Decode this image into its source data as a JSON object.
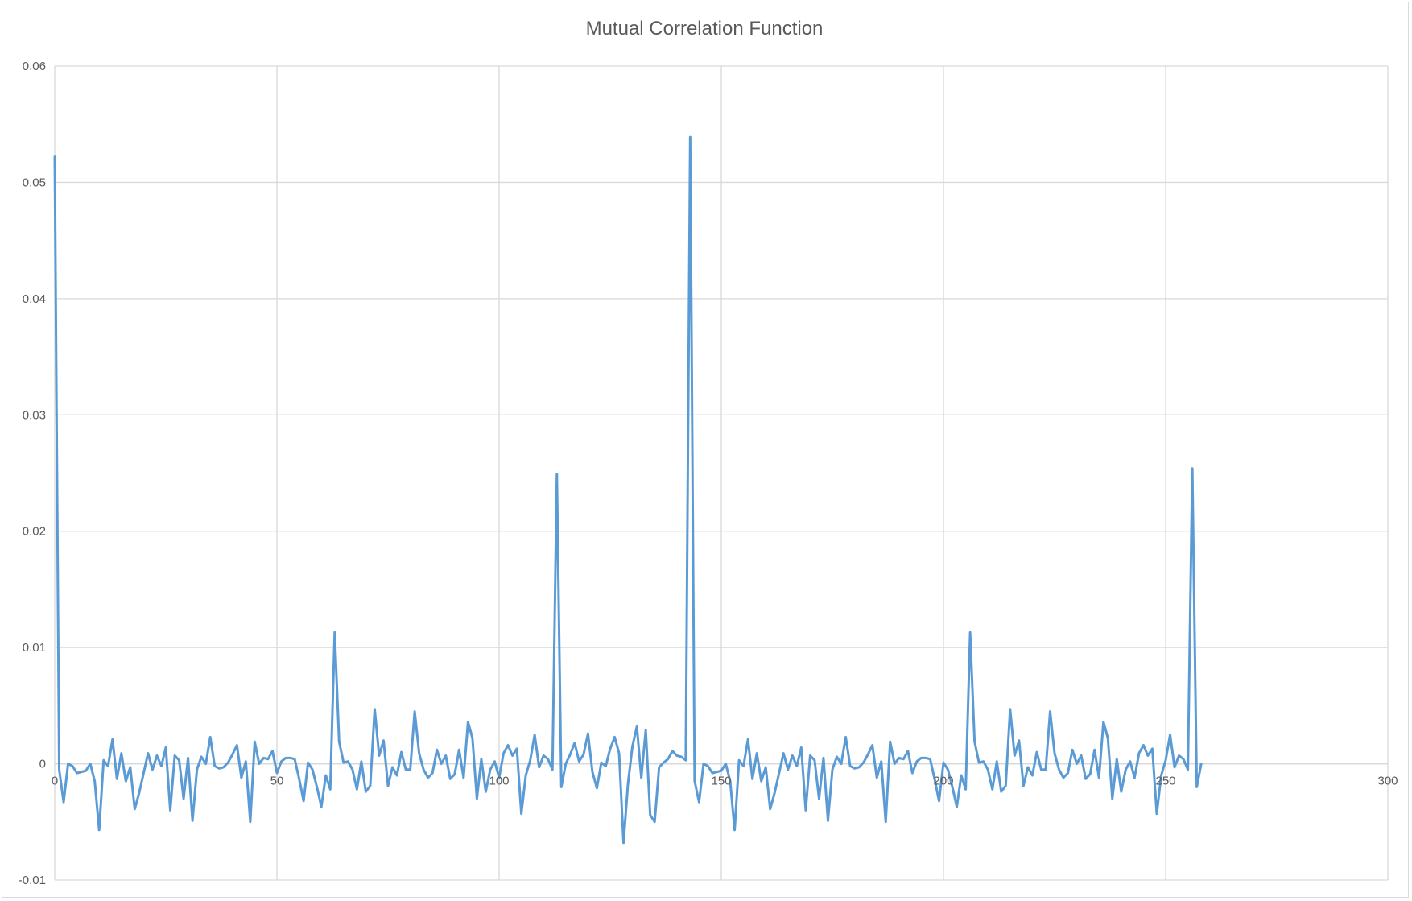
{
  "chart_data": {
    "type": "line",
    "title": "Mutual Correlation Function",
    "xlabel": "",
    "ylabel": "",
    "xlim": [
      0,
      300
    ],
    "ylim": [
      -0.01,
      0.06
    ],
    "x_ticks": [
      0,
      50,
      100,
      150,
      200,
      250,
      300
    ],
    "y_ticks": [
      -0.01,
      0,
      0.01,
      0.02,
      0.03,
      0.04,
      0.05,
      0.06
    ],
    "x_tick_labels": [
      "0",
      "50",
      "100",
      "150",
      "200",
      "250",
      "300"
    ],
    "y_tick_labels": [
      "-0.01",
      "0",
      "0.01",
      "0.02",
      "0.03",
      "0.04",
      "0.05",
      "0.06"
    ],
    "grid": true,
    "legend": "none",
    "series": [
      {
        "color": "#5b9bd5",
        "values": [
          0.0522,
          -0.0005,
          -0.0033,
          0.0,
          -0.0002,
          -0.0008,
          -0.0007,
          -0.0006,
          0.0,
          -0.0015,
          -0.0057,
          0.0003,
          -0.0002,
          0.0021,
          -0.0013,
          0.0009,
          -0.0015,
          -0.0003,
          -0.0039,
          -0.0025,
          -0.0008,
          0.0009,
          -0.0005,
          0.0007,
          -0.0002,
          0.0014,
          -0.004,
          0.0007,
          0.0003,
          -0.003,
          0.0005,
          -0.0049,
          -0.0005,
          0.0006,
          0.0,
          0.0023,
          -0.0002,
          -0.0004,
          -0.0003,
          0.0001,
          0.0008,
          0.0016,
          -0.0012,
          0.0002,
          -0.005,
          0.0019,
          0.0,
          0.0005,
          0.0004,
          0.0011,
          -0.0008,
          0.0002,
          0.0005,
          0.0005,
          0.0004,
          -0.0013,
          -0.0032,
          0.0001,
          -0.0005,
          -0.002,
          -0.0037,
          -0.001,
          -0.0022,
          0.0113,
          0.0019,
          0.0001,
          0.0002,
          -0.0005,
          -0.0022,
          0.0002,
          -0.0024,
          -0.0019,
          0.0047,
          0.0007,
          0.002,
          -0.0019,
          -0.0003,
          -0.001,
          0.001,
          -0.0005,
          -0.0005,
          0.0045,
          0.0009,
          -0.0005,
          -0.0012,
          -0.0008,
          0.0012,
          0.0,
          0.0007,
          -0.0013,
          -0.0009,
          0.0012,
          -0.0012,
          0.0036,
          0.0022,
          -0.003,
          0.0004,
          -0.0024,
          -0.0005,
          0.0002,
          -0.0012,
          0.0009,
          0.0016,
          0.0007,
          0.0013,
          -0.0043,
          -0.001,
          0.0003,
          0.0025,
          -0.0003,
          0.0007,
          0.0004,
          -0.0005,
          0.0249,
          -0.002,
          0.0,
          0.0008,
          0.0018,
          0.0002,
          0.0008,
          0.0026,
          -0.0007,
          -0.0021,
          0.0001,
          -0.0002,
          0.0013,
          0.0023,
          0.0009,
          -0.0068,
          -0.0017,
          0.0015,
          0.0032,
          -0.0012,
          0.0029,
          -0.0044,
          -0.005,
          -0.0003,
          0.0001,
          0.0004,
          0.0011,
          0.0007,
          0.0006,
          0.0003,
          0.0539,
          -0.0015,
          -0.0033,
          0.0,
          -0.0002,
          -0.0008,
          -0.0007,
          -0.0006,
          0.0,
          -0.0015,
          -0.0057,
          0.0003,
          -0.0002,
          0.0021,
          -0.0013,
          0.0009,
          -0.0015,
          -0.0003,
          -0.0039,
          -0.0025,
          -0.0008,
          0.0009,
          -0.0005,
          0.0007,
          -0.0002,
          0.0014,
          -0.004,
          0.0007,
          0.0003,
          -0.003,
          0.0005,
          -0.0049,
          -0.0005,
          0.0006,
          0.0,
          0.0023,
          -0.0002,
          -0.0004,
          -0.0003,
          0.0001,
          0.0008,
          0.0016,
          -0.0012,
          0.0002,
          -0.005,
          0.0019,
          0.0,
          0.0005,
          0.0004,
          0.0011,
          -0.0008,
          0.0002,
          0.0005,
          0.0005,
          0.0004,
          -0.0013,
          -0.0032,
          0.0001,
          -0.0005,
          -0.002,
          -0.0037,
          -0.001,
          -0.0022,
          0.0113,
          0.0019,
          0.0001,
          0.0002,
          -0.0005,
          -0.0022,
          0.0002,
          -0.0024,
          -0.0019,
          0.0047,
          0.0007,
          0.002,
          -0.0019,
          -0.0003,
          -0.001,
          0.001,
          -0.0005,
          -0.0005,
          0.0045,
          0.0009,
          -0.0005,
          -0.0012,
          -0.0008,
          0.0012,
          0.0,
          0.0007,
          -0.0013,
          -0.0009,
          0.0012,
          -0.0012,
          0.0036,
          0.0022,
          -0.003,
          0.0004,
          -0.0024,
          -0.0005,
          0.0002,
          -0.0012,
          0.0009,
          0.0016,
          0.0007,
          0.0013,
          -0.0043,
          -0.001,
          0.0003,
          0.0025,
          -0.0003,
          0.0007,
          0.0004,
          -0.0005,
          0.0254,
          -0.002,
          0.0
        ]
      }
    ]
  }
}
